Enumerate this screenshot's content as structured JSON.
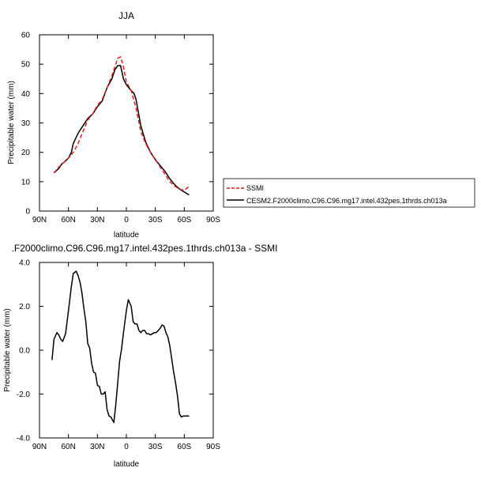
{
  "chart_data": [
    {
      "type": "line",
      "title": "JJA",
      "xlabel": "latitude",
      "ylabel": "Precipitable water (mm)",
      "xlim": [
        90,
        -90
      ],
      "ylim": [
        0,
        60
      ],
      "x_ticks": [
        90,
        60,
        30,
        0,
        -30,
        -60,
        -90
      ],
      "x_tick_labels": [
        "90N",
        "60N",
        "30N",
        "0",
        "30S",
        "60S",
        "90S"
      ],
      "y_ticks": [
        0,
        10,
        20,
        30,
        40,
        50,
        60
      ],
      "y_tick_labels": [
        "0",
        "10",
        "20",
        "30",
        "40",
        "50",
        "60"
      ],
      "grid": false,
      "legend_position": "right",
      "series": [
        {
          "name": "SSMI",
          "color": "#e31a1c",
          "dash": true,
          "x": [
            75,
            70,
            65,
            60,
            55,
            50,
            45,
            40,
            35,
            30,
            25,
            20,
            15,
            12,
            9,
            6,
            3,
            0,
            -5,
            -10,
            -15,
            -20,
            -25,
            -30,
            -35,
            -40,
            -45,
            -50,
            -55,
            -60,
            -65
          ],
          "y": [
            13,
            15,
            16.5,
            18,
            20,
            23,
            27,
            31,
            33,
            36,
            38,
            42,
            46,
            49,
            52,
            52.5,
            49,
            44,
            41,
            35,
            27,
            23,
            20,
            17.5,
            15,
            12.5,
            10,
            8.5,
            7.5,
            7,
            8.5
          ]
        },
        {
          "name": "CESM2.F2000climo.C96.C96.mg17.intel.432pes.1thrds.ch013a",
          "color": "#000000",
          "dash": false,
          "x": [
            75,
            70,
            67,
            65,
            60,
            57,
            55,
            50,
            45,
            40,
            35,
            30,
            25,
            20,
            15,
            12,
            9,
            6,
            3,
            0,
            -5,
            -8,
            -10,
            -15,
            -20,
            -25,
            -30,
            -35,
            -40,
            -45,
            -50,
            -55,
            -60,
            -65
          ],
          "y": [
            13,
            14.5,
            16,
            16.5,
            18,
            20,
            23,
            26.5,
            29,
            31.5,
            33,
            35.5,
            37.5,
            42,
            45,
            48,
            49.5,
            49.5,
            45,
            43,
            41,
            40,
            38,
            29,
            23.5,
            20,
            17.5,
            15.5,
            13.5,
            11,
            9,
            7.5,
            6.5,
            5.5
          ]
        }
      ]
    },
    {
      "type": "line",
      "title": ".F2000climo.C96.C96.mg17.intel.432pes.1thrds.ch013a - SSMI",
      "xlabel": "latitude",
      "ylabel": "Precipitable water (mm)",
      "xlim": [
        90,
        -90
      ],
      "ylim": [
        -4,
        4
      ],
      "x_ticks": [
        90,
        60,
        30,
        0,
        -30,
        -60,
        -90
      ],
      "x_tick_labels": [
        "90N",
        "60N",
        "30N",
        "0",
        "30S",
        "60S",
        "90S"
      ],
      "y_ticks": [
        -4,
        -2,
        0,
        2,
        4
      ],
      "y_tick_labels": [
        "-4.0",
        "-2.0",
        "0.0",
        "2.0",
        "4.0"
      ],
      "grid": false,
      "series": [
        {
          "color": "#000000",
          "x": [
            77,
            75,
            72,
            70,
            68,
            66,
            63,
            60,
            57,
            55,
            52,
            50,
            48,
            46,
            44,
            42,
            40,
            38,
            36,
            34,
            32,
            30,
            28,
            26,
            24,
            22,
            20,
            18,
            16,
            13,
            11,
            9,
            7,
            5,
            3,
            0,
            -2,
            -5,
            -7,
            -9,
            -11,
            -13,
            -15,
            -17,
            -19,
            -21,
            -23,
            -25,
            -27,
            -29,
            -31,
            -33,
            -35,
            -37,
            -39,
            -41,
            -43,
            -45,
            -47,
            -49,
            -51,
            -53,
            -55,
            -57,
            -59,
            -61,
            -63,
            -65
          ],
          "y": [
            -0.45,
            0.5,
            0.8,
            0.7,
            0.5,
            0.4,
            0.75,
            1.8,
            2.9,
            3.5,
            3.6,
            3.4,
            3.1,
            2.6,
            1.9,
            1.3,
            0.3,
            0.1,
            -0.6,
            -1.0,
            -1.05,
            -1.6,
            -1.65,
            -2.0,
            -2.0,
            -1.9,
            -2.7,
            -3.0,
            -3.05,
            -3.3,
            -2.5,
            -1.5,
            -0.5,
            0.05,
            0.8,
            1.8,
            2.3,
            2.0,
            1.3,
            1.2,
            1.2,
            0.9,
            0.8,
            0.9,
            0.9,
            0.75,
            0.75,
            0.7,
            0.75,
            0.8,
            0.8,
            0.9,
            1.0,
            1.15,
            1.1,
            0.8,
            0.6,
            0.2,
            -0.4,
            -1.0,
            -1.5,
            -2.1,
            -2.9,
            -3.05,
            -3.0,
            -3.0,
            -3.0,
            -3.0
          ]
        }
      ]
    }
  ]
}
